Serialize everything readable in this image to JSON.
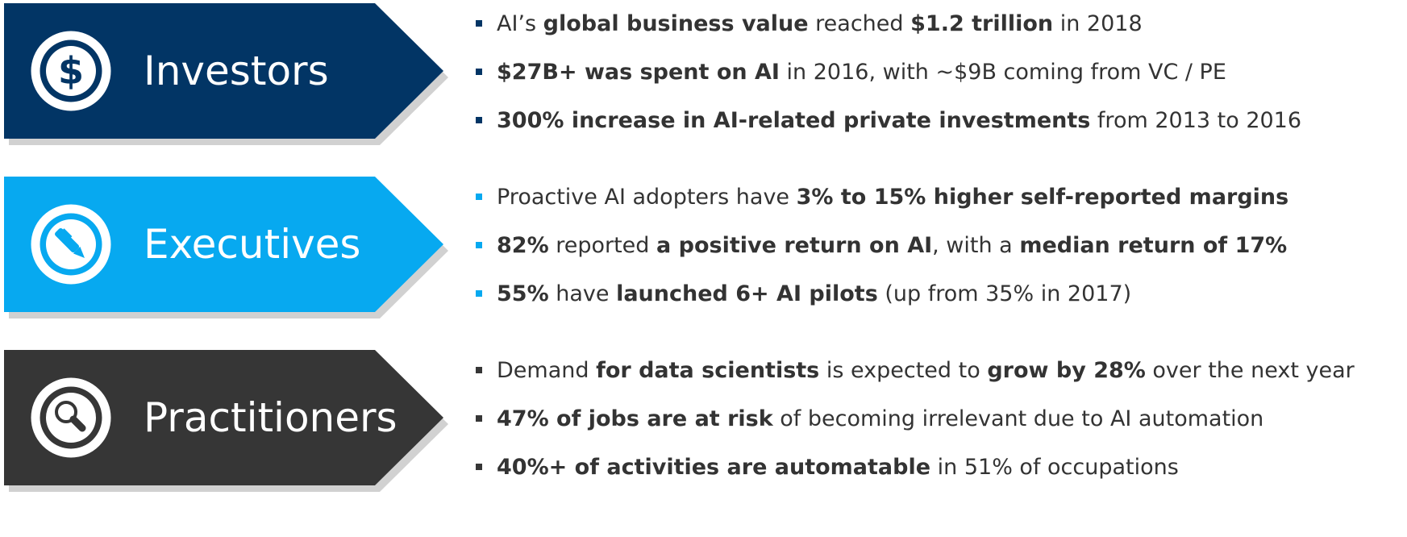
{
  "colors": {
    "investors": "#023565",
    "executives": "#07A9F0",
    "practitioners": "#363636",
    "text": "#333333",
    "bullet_investors": "#023565",
    "bullet_executives": "#07A9F0",
    "bullet_practitioners": "#363636"
  },
  "sections": [
    {
      "title": "Investors",
      "icon": "dollar-icon",
      "bullets": [
        [
          {
            "text": "AI’s ",
            "bold": false
          },
          {
            "text": "global business value",
            "bold": true
          },
          {
            "text": " reached ",
            "bold": false
          },
          {
            "text": "$1.2 trillion",
            "bold": true
          },
          {
            "text": " in 2018",
            "bold": false
          }
        ],
        [
          {
            "text": "$27B+ was spent on AI",
            "bold": true
          },
          {
            "text": " in 2016, with ~$9B coming from VC / PE",
            "bold": false
          }
        ],
        [
          {
            "text": "300% increase in AI-related private investments",
            "bold": true
          },
          {
            "text": " from 2013 to 2016",
            "bold": false
          }
        ]
      ]
    },
    {
      "title": "Executives",
      "icon": "pen-icon",
      "bullets": [
        [
          {
            "text": "Proactive AI adopters have ",
            "bold": false
          },
          {
            "text": "3% to 15% higher self-reported margins",
            "bold": true
          }
        ],
        [
          {
            "text": "82%",
            "bold": true
          },
          {
            "text": " reported ",
            "bold": false
          },
          {
            "text": "a positive return on AI",
            "bold": true
          },
          {
            "text": ", with a ",
            "bold": false
          },
          {
            "text": "median return of 17%",
            "bold": true
          }
        ],
        [
          {
            "text": "55%",
            "bold": true
          },
          {
            "text": " have ",
            "bold": false
          },
          {
            "text": "launched 6+ AI pilots",
            "bold": true
          },
          {
            "text": " (up from 35% in 2017)",
            "bold": false
          }
        ]
      ]
    },
    {
      "title": "Practitioners",
      "icon": "magnifier-icon",
      "bullets": [
        [
          {
            "text": "Demand ",
            "bold": false
          },
          {
            "text": "for data scientists",
            "bold": true
          },
          {
            "text": " is expected to ",
            "bold": false
          },
          {
            "text": "grow by 28%",
            "bold": true
          },
          {
            "text": " over the next year",
            "bold": false
          }
        ],
        [
          {
            "text": "47% of jobs are at risk",
            "bold": true
          },
          {
            "text": " of becoming irrelevant due to AI automation",
            "bold": false
          }
        ],
        [
          {
            "text": "40%+ of activities are automatable",
            "bold": true
          },
          {
            "text": " in 51% of occupations",
            "bold": false
          }
        ]
      ]
    }
  ]
}
